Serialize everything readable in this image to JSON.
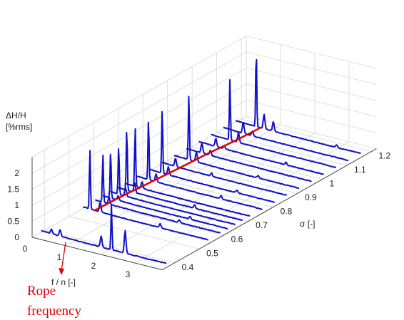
{
  "chart_data": {
    "type": "line",
    "subtype": "waterfall-3d",
    "zlabel_line1": "ΔH/H",
    "zlabel_line2": "[%rms]",
    "xlabel": "f / n [-]",
    "ylabel": "σ  [-]",
    "x_ticks": [
      "0",
      "1",
      "2",
      "3"
    ],
    "y_ticks": [
      "0.4",
      "0.5",
      "0.6",
      "0.7",
      "0.8",
      "0.9",
      "1",
      "1.1",
      "1.2"
    ],
    "z_ticks": [
      "0",
      "0.5",
      "1",
      "1.5",
      "2"
    ],
    "xlim": [
      0,
      3.8
    ],
    "ylim": [
      0.35,
      1.22
    ],
    "zlim": [
      0,
      2.5
    ],
    "grid": true,
    "line_color": "#1010c8",
    "rope_line_color": "#e00000",
    "annotation": {
      "line1": "Rope",
      "line2": "frequency"
    },
    "series": [
      {
        "sigma": 0.38,
        "peaks": [
          [
            0.35,
            0.15
          ],
          [
            0.6,
            0.2
          ],
          [
            1.8,
            0.35
          ],
          [
            2.1,
            1.4
          ],
          [
            2.5,
            0.7
          ]
        ]
      },
      {
        "sigma": 0.55,
        "peaks": [
          [
            0.25,
            1.85
          ],
          [
            0.55,
            0.3
          ],
          [
            2.3,
            0.12
          ]
        ]
      },
      {
        "sigma": 0.6,
        "peaks": [
          [
            0.27,
            1.5
          ],
          [
            0.45,
            0.2
          ],
          [
            2.5,
            0.08
          ]
        ]
      },
      {
        "sigma": 0.63,
        "peaks": [
          [
            0.28,
            1.5
          ],
          [
            0.5,
            0.15
          ],
          [
            2.6,
            0.08
          ]
        ]
      },
      {
        "sigma": 0.66,
        "peaks": [
          [
            0.3,
            1.55
          ],
          [
            0.5,
            0.25
          ]
        ]
      },
      {
        "sigma": 0.69,
        "peaks": [
          [
            0.32,
            1.95
          ],
          [
            0.55,
            0.3
          ],
          [
            2.3,
            0.1
          ]
        ]
      },
      {
        "sigma": 0.72,
        "peaks": [
          [
            0.35,
            1.85
          ],
          [
            0.55,
            0.2
          ]
        ]
      },
      {
        "sigma": 0.77,
        "peaks": [
          [
            0.38,
            1.9
          ],
          [
            0.6,
            0.25
          ],
          [
            2.5,
            0.1
          ]
        ]
      },
      {
        "sigma": 0.82,
        "peaks": [
          [
            0.42,
            2.0
          ],
          [
            0.6,
            0.25
          ],
          [
            2.6,
            0.08
          ]
        ]
      },
      {
        "sigma": 0.87,
        "peaks": [
          [
            0.45,
            0.25
          ],
          [
            1.5,
            0.1
          ]
        ]
      },
      {
        "sigma": 0.92,
        "peaks": [
          [
            0.48,
            2.05
          ],
          [
            0.7,
            0.3
          ],
          [
            2.5,
            0.08
          ]
        ]
      },
      {
        "sigma": 0.97,
        "peaks": [
          [
            0.5,
            0.3
          ],
          [
            0.75,
            0.15
          ]
        ]
      },
      {
        "sigma": 1.02,
        "peaks": [
          [
            0.55,
            0.25
          ],
          [
            0.8,
            0.1
          ],
          [
            2.6,
            0.08
          ]
        ]
      },
      {
        "sigma": 1.07,
        "peaks": [
          [
            0.6,
            1.9
          ],
          [
            0.85,
            0.3
          ]
        ]
      },
      {
        "sigma": 1.12,
        "peaks": [
          [
            0.63,
            0.35
          ],
          [
            0.9,
            0.15
          ]
        ]
      },
      {
        "sigma": 1.17,
        "peaks": [
          [
            0.65,
            2.4
          ],
          [
            0.88,
            0.45
          ],
          [
            1.15,
            0.3
          ],
          [
            3.0,
            0.08
          ]
        ]
      }
    ]
  }
}
